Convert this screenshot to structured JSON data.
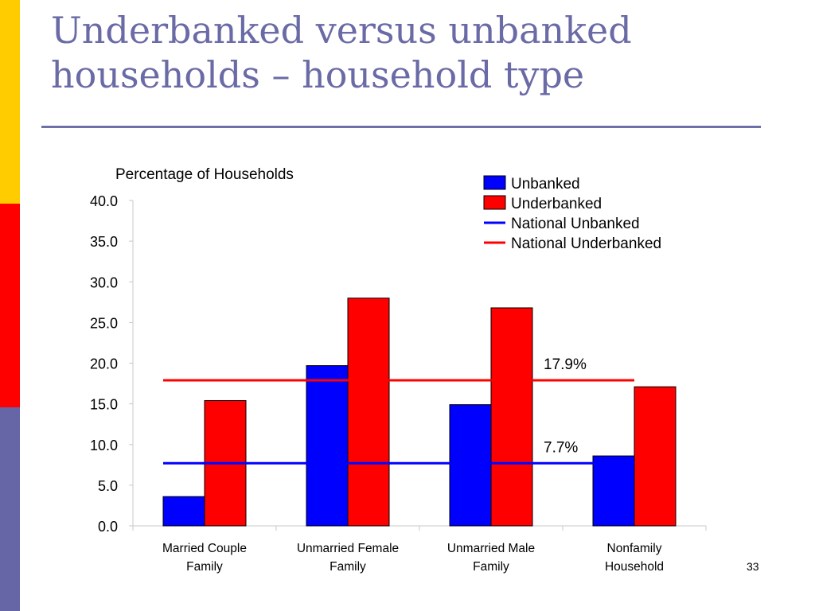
{
  "slide": {
    "title_line1": "Underbanked versus unbanked",
    "title_line2": "households – household type",
    "page_number": "33",
    "side_colors": [
      "#ffcc00",
      "#ff0000",
      "#6666a6"
    ]
  },
  "chart_data": {
    "type": "bar",
    "title": "",
    "ylabel": "Percentage of Households",
    "xlabel": "",
    "ylim": [
      0,
      40
    ],
    "yticks": [
      "0.0",
      "5.0",
      "10.0",
      "15.0",
      "20.0",
      "25.0",
      "30.0",
      "35.0",
      "40.0"
    ],
    "categories": [
      [
        "Married Couple",
        "Family"
      ],
      [
        "Unmarried Female",
        "Family"
      ],
      [
        "Unmarried Male",
        "Family"
      ],
      [
        "Nonfamily",
        "Household"
      ]
    ],
    "series": [
      {
        "name": "Unbanked",
        "color": "#0000ff",
        "values": [
          3.6,
          19.7,
          14.9,
          8.6
        ]
      },
      {
        "name": "Underbanked",
        "color": "#ff0000",
        "values": [
          15.4,
          28.0,
          26.8,
          17.1
        ]
      }
    ],
    "reference_lines": [
      {
        "name": "National Unbanked",
        "color": "#0000ff",
        "value": 7.7,
        "label": "7.7%"
      },
      {
        "name": "National Underbanked",
        "color": "#ff0000",
        "value": 17.9,
        "label": "17.9%"
      }
    ],
    "legend_position": "top-right",
    "grid": false
  }
}
